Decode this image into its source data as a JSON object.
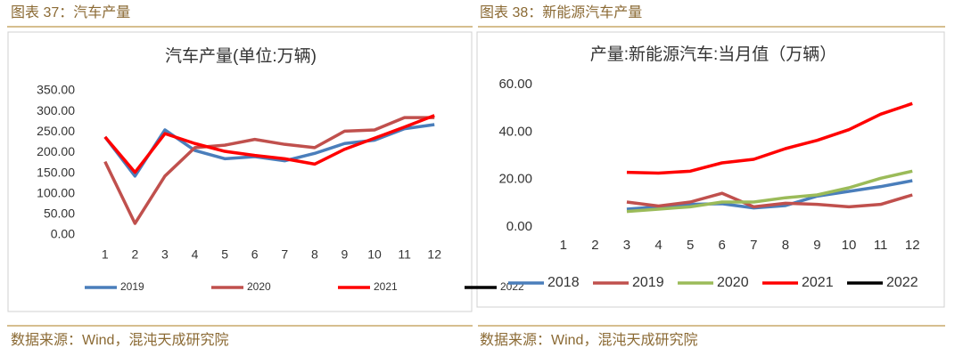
{
  "chart_data": [
    {
      "type": "line",
      "caption": "图表 37：汽车产量",
      "source": "数据来源：Wind，混沌天成研究院",
      "title": "汽车产量(单位:万辆)",
      "categories": [
        "1",
        "2",
        "3",
        "4",
        "5",
        "6",
        "7",
        "8",
        "9",
        "10",
        "11",
        "12"
      ],
      "ylim": [
        0,
        350
      ],
      "yticks": [
        {
          "value": 0,
          "label": "0.00"
        },
        {
          "value": 50,
          "label": "50.00"
        },
        {
          "value": 100,
          "label": "100.00"
        },
        {
          "value": 150,
          "label": "150.00"
        },
        {
          "value": 200,
          "label": "200.00"
        },
        {
          "value": 250,
          "label": "250.00"
        },
        {
          "value": 300,
          "label": "300.00"
        },
        {
          "value": 350,
          "label": "350.00"
        }
      ],
      "grid": false,
      "series": [
        {
          "name": "2019",
          "color": "#4a7ebb",
          "values": [
            238,
            143,
            255,
            205,
            185,
            190,
            180,
            198,
            222,
            230,
            258,
            268
          ]
        },
        {
          "name": "2020",
          "color": "#c0504d",
          "values": [
            178,
            28,
            143,
            212,
            218,
            232,
            220,
            212,
            252,
            255,
            285,
            285
          ]
        },
        {
          "name": "2021",
          "color": "#ff0000",
          "values": [
            238,
            152,
            246,
            222,
            203,
            193,
            185,
            172,
            208,
            235,
            262,
            290
          ]
        },
        {
          "name": "2022",
          "color": "#000000",
          "values": [
            null,
            null,
            null,
            null,
            null,
            null,
            null,
            null,
            null,
            null,
            null,
            null
          ]
        }
      ]
    },
    {
      "type": "line",
      "caption": "图表 38：新能源汽车产量",
      "source": "数据来源：Wind，混沌天成研究院",
      "title": "产量:新能源汽车:当月值（万辆）",
      "categories": [
        "1",
        "2",
        "3",
        "4",
        "5",
        "6",
        "7",
        "8",
        "9",
        "10",
        "11",
        "12"
      ],
      "ylim": [
        0,
        60
      ],
      "yticks": [
        {
          "value": 0,
          "label": "0.00"
        },
        {
          "value": 20,
          "label": "20.00"
        },
        {
          "value": 40,
          "label": "40.00"
        },
        {
          "value": 60,
          "label": "60.00"
        }
      ],
      "grid": false,
      "series": [
        {
          "name": "2018",
          "color": "#4a7ebb",
          "values": [
            null,
            null,
            7.5,
            8.5,
            9.5,
            9.8,
            8,
            9,
            13,
            15,
            17,
            19.5
          ]
        },
        {
          "name": "2019",
          "color": "#c0504d",
          "values": [
            null,
            null,
            10.5,
            8.8,
            10.5,
            14.2,
            8.5,
            10,
            9.5,
            8.5,
            9.5,
            13.5
          ]
        },
        {
          "name": "2020",
          "color": "#9bbb59",
          "values": [
            null,
            null,
            6.5,
            7.5,
            8.5,
            10.5,
            10.5,
            12.3,
            13.5,
            16.5,
            20.5,
            23.5
          ]
        },
        {
          "name": "2021",
          "color": "#ff0000",
          "values": [
            null,
            null,
            23,
            22.7,
            23.5,
            27,
            28.5,
            33,
            36.5,
            41,
            47.5,
            52
          ]
        },
        {
          "name": "2022",
          "color": "#000000",
          "values": [
            null,
            null,
            null,
            null,
            null,
            null,
            null,
            null,
            null,
            null,
            null,
            null
          ]
        }
      ]
    }
  ]
}
